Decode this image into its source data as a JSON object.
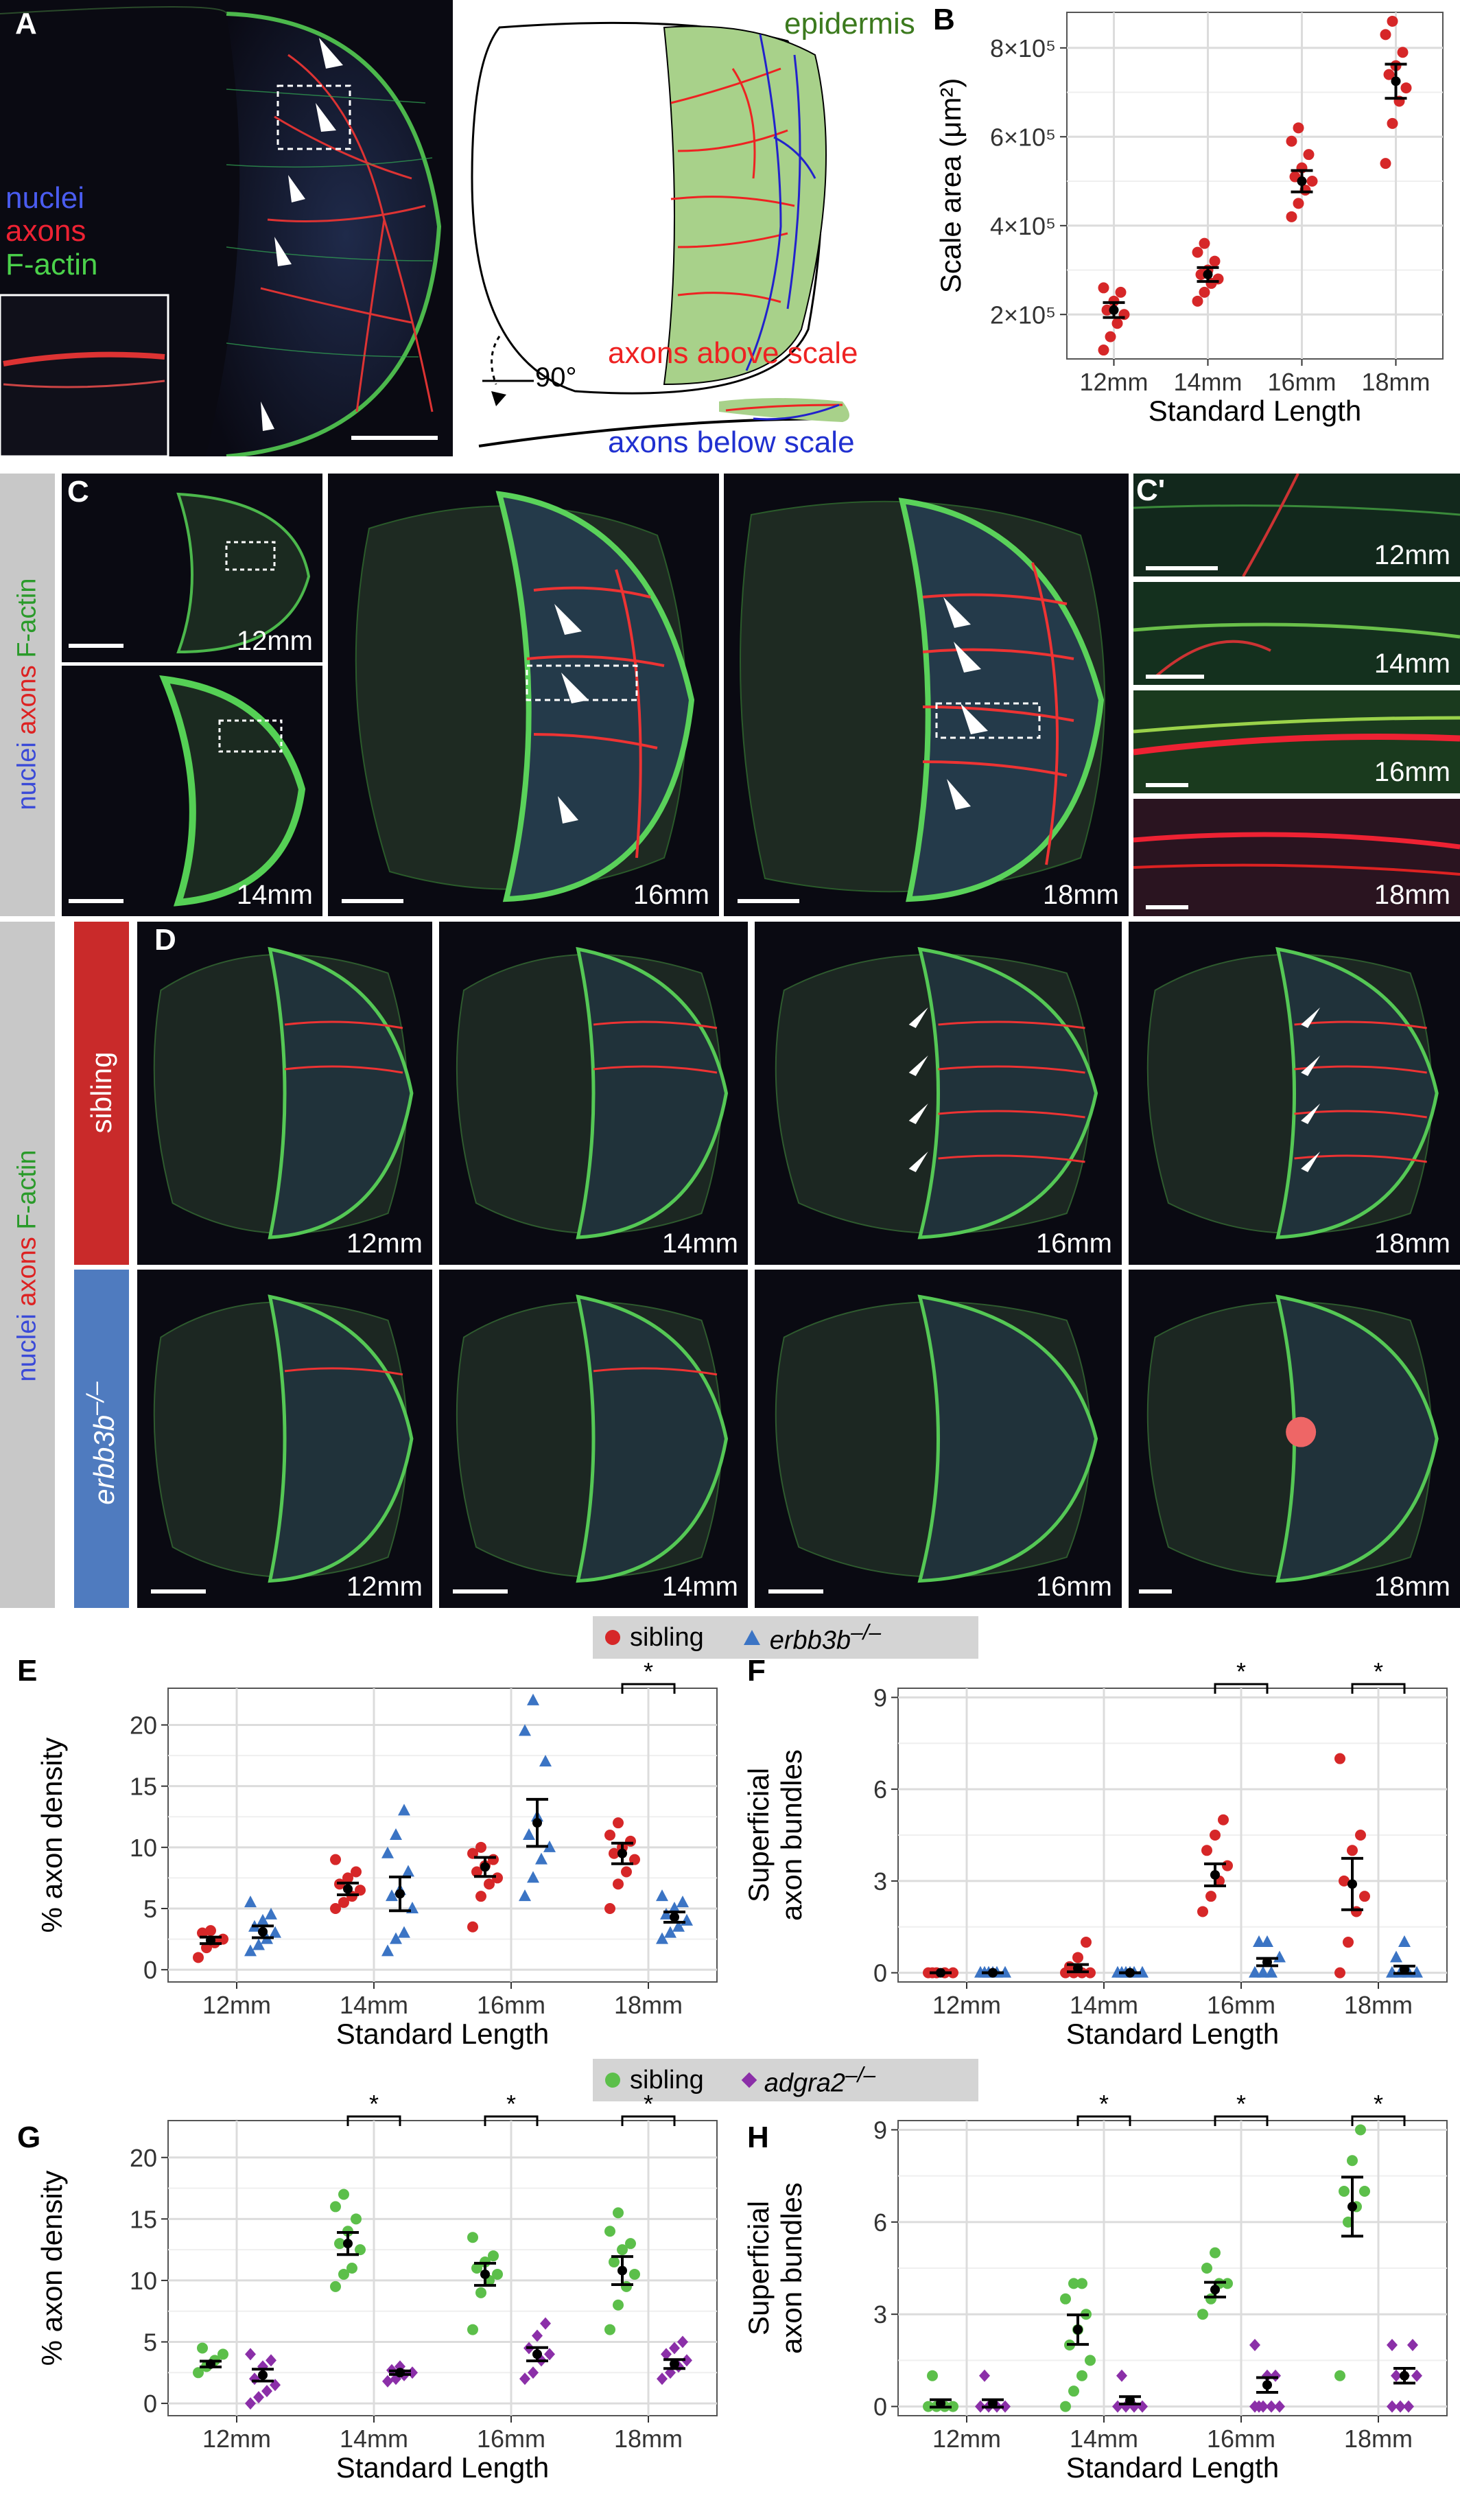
{
  "panel_labels": {
    "A": "A",
    "B": "B",
    "C": "C",
    "Cp": "C'",
    "D": "D",
    "E": "E",
    "F": "F",
    "G": "G",
    "H": "H"
  },
  "stain_labels": {
    "nuclei": "nuclei",
    "axons": "axons",
    "factin": "F-actin"
  },
  "schematic": {
    "epidermis": "epidermis",
    "above": "axons above scale",
    "below": "axons below scale",
    "angle": "90°"
  },
  "ages": [
    "12mm",
    "14mm",
    "16mm",
    "18mm"
  ],
  "groups": {
    "sibling": "sibling",
    "erbb3b": "erbb3b",
    "adgra2": "adgra2",
    "mut_sup": "–/–"
  },
  "colors": {
    "sibling_red": "#d62728",
    "erbb3b_blue": "#3b74c4",
    "sibling_green": "#5cbf4a",
    "adgra2_purple": "#8b2fa8",
    "wt_side": "#c92a2a",
    "mut_side": "#4f7bbf"
  },
  "significance_mark": "*",
  "chart_data": [
    {
      "panel": "B",
      "type": "scatter",
      "xlabel": "Standard Length",
      "ylabel": "Scale area (μm²)",
      "categories": [
        "12mm",
        "14mm",
        "16mm",
        "18mm"
      ],
      "yticks": [
        "2×10⁵",
        "4×10⁵",
        "6×10⁵",
        "8×10⁵"
      ],
      "ylim": [
        100000,
        880000
      ],
      "series": [
        {
          "means": [
            210000,
            290000,
            500000,
            725000
          ],
          "points": [
            [
              120000,
              150000,
              180000,
              200000,
              210000,
              230000,
              250000,
              260000
            ],
            [
              230000,
              250000,
              270000,
              280000,
              290000,
              300000,
              320000,
              340000,
              360000
            ],
            [
              420000,
              450000,
              480000,
              500000,
              510000,
              530000,
              560000,
              590000,
              620000
            ],
            [
              540000,
              630000,
              680000,
              710000,
              740000,
              760000,
              790000,
              830000,
              860000
            ]
          ]
        }
      ]
    },
    {
      "panel": "E",
      "type": "scatter",
      "xlabel": "Standard Length",
      "ylabel": "% axon density",
      "categories": [
        "12mm",
        "14mm",
        "16mm",
        "18mm"
      ],
      "ylim": [
        -1,
        23
      ],
      "yticks": [
        0,
        5,
        10,
        15,
        20
      ],
      "series": [
        {
          "name": "sibling",
          "means": [
            2.4,
            6.6,
            8.4,
            9.5
          ],
          "points": [
            [
              1,
              1.8,
              2.2,
              2.5,
              3,
              3.2
            ],
            [
              5,
              5.5,
              6,
              6.5,
              7,
              7.5,
              8,
              9
            ],
            [
              3.5,
              6,
              7,
              7.5,
              8,
              8.5,
              9,
              9.5,
              10
            ],
            [
              5,
              7,
              8,
              9,
              9.5,
              10,
              10.5,
              11,
              12
            ]
          ]
        },
        {
          "name": "erbb3b",
          "means": [
            3.1,
            6.2,
            12,
            4.3
          ],
          "points": [
            [
              1.5,
              2,
              2.5,
              3,
              3.5,
              4,
              4.5,
              5.5
            ],
            [
              1.5,
              2.5,
              3,
              5,
              6,
              6.5,
              8,
              9.5,
              11,
              13
            ],
            [
              6,
              7.5,
              9,
              10,
              11,
              12.5,
              17,
              19.5,
              22
            ],
            [
              2.5,
              3,
              3.5,
              4,
              4.5,
              5,
              5.5,
              6
            ]
          ]
        }
      ],
      "sig": [
        3
      ]
    },
    {
      "panel": "F",
      "type": "scatter",
      "xlabel": "Standard Length",
      "ylabel": "Superficial axon bundles",
      "categories": [
        "12mm",
        "14mm",
        "16mm",
        "18mm"
      ],
      "ylim": [
        -0.3,
        9.3
      ],
      "yticks": [
        0,
        3,
        6,
        9
      ],
      "series": [
        {
          "name": "sibling",
          "means": [
            0,
            0.15,
            3.2,
            2.9
          ],
          "points": [
            [
              0,
              0,
              0,
              0,
              0
            ],
            [
              0,
              0,
              0,
              0,
              0.2,
              0.5,
              1
            ],
            [
              2,
              2.5,
              3,
              3.5,
              4,
              4.5,
              5
            ],
            [
              0,
              1,
              2,
              2.5,
              3,
              4,
              4.5,
              7
            ]
          ]
        },
        {
          "name": "erbb3b",
          "means": [
            0,
            0,
            0.35,
            0.1
          ],
          "points": [
            [
              0,
              0,
              0,
              0,
              0,
              0
            ],
            [
              0,
              0,
              0,
              0,
              0,
              0
            ],
            [
              0,
              0,
              0,
              0.5,
              1,
              1
            ],
            [
              0,
              0,
              0,
              0,
              0.5,
              1
            ]
          ]
        }
      ],
      "sig": [
        2,
        3
      ]
    },
    {
      "panel": "G",
      "type": "scatter",
      "xlabel": "Standard Length",
      "ylabel": "% axon density",
      "categories": [
        "12mm",
        "14mm",
        "16mm",
        "18mm"
      ],
      "ylim": [
        -1,
        23
      ],
      "yticks": [
        0,
        5,
        10,
        15,
        20
      ],
      "series": [
        {
          "name": "sibling",
          "means": [
            3.2,
            13,
            10.5,
            10.8
          ],
          "points": [
            [
              2.5,
              3,
              3.5,
              4,
              4.5
            ],
            [
              9.5,
              10.5,
              11,
              12.5,
              13,
              14,
              15,
              16,
              17
            ],
            [
              6,
              9,
              10,
              10.5,
              11,
              11.5,
              12,
              13.5
            ],
            [
              6,
              8,
              9.5,
              10.5,
              11.5,
              12.5,
              13,
              14,
              15.5
            ]
          ]
        },
        {
          "name": "adgra2",
          "means": [
            2.3,
            2.5,
            4,
            3.2
          ],
          "points": [
            [
              0,
              0.5,
              1,
              1.5,
              2,
              3,
              3.5,
              4
            ],
            [
              1.8,
              2,
              2.3,
              2.5,
              2.7,
              3
            ],
            [
              2,
              2.5,
              3.5,
              4,
              4.5,
              5.5,
              6.5
            ],
            [
              2,
              2.5,
              3,
              3.5,
              4,
              4.5,
              5
            ]
          ]
        }
      ],
      "sig": [
        1,
        2,
        3
      ]
    },
    {
      "panel": "H",
      "type": "scatter",
      "xlabel": "Standard Length",
      "ylabel": "Superficial axon bundles",
      "categories": [
        "12mm",
        "14mm",
        "16mm",
        "18mm"
      ],
      "ylim": [
        -0.3,
        9.3
      ],
      "yticks": [
        0,
        3,
        6,
        9
      ],
      "series": [
        {
          "name": "sibling",
          "means": [
            0.1,
            2.5,
            3.8,
            6.5
          ],
          "points": [
            [
              0,
              0,
              0,
              0,
              1
            ],
            [
              0,
              0.5,
              1,
              1.5,
              2,
              2.5,
              3,
              3.5,
              4,
              4
            ],
            [
              3,
              3.5,
              4,
              4,
              4.5,
              5
            ],
            [
              1,
              6,
              6.5,
              7,
              7,
              8,
              9
            ]
          ]
        },
        {
          "name": "adgra2",
          "means": [
            0.1,
            0.2,
            0.7,
            1
          ],
          "points": [
            [
              0,
              0,
              0,
              0,
              1
            ],
            [
              0,
              0,
              0,
              0,
              1
            ],
            [
              0,
              0,
              0,
              0,
              0,
              1,
              1,
              2
            ],
            [
              0,
              0,
              0,
              1,
              1,
              1,
              2,
              2
            ]
          ]
        }
      ],
      "sig": [
        1,
        2,
        3
      ]
    }
  ]
}
